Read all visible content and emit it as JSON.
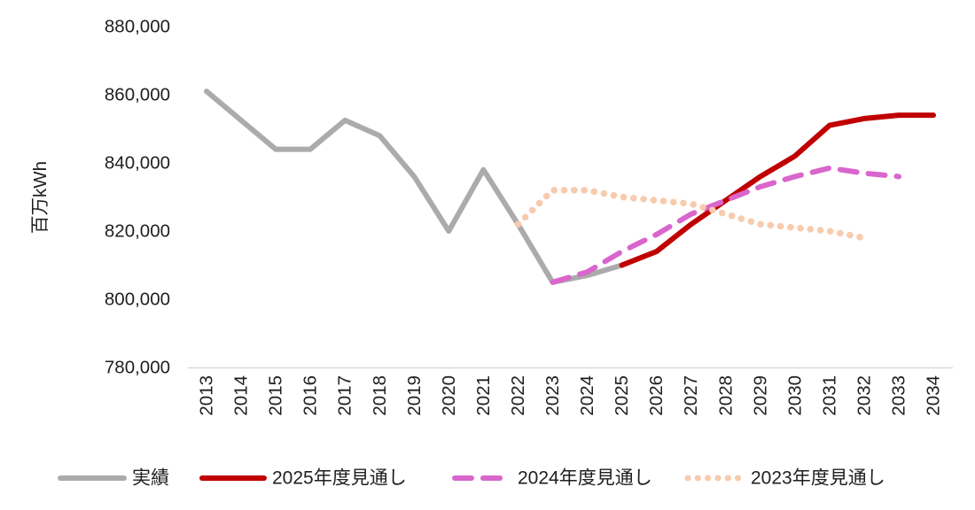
{
  "chart_data": {
    "type": "line",
    "title": "",
    "ylabel": "百万kWh",
    "ylim": [
      780000,
      880000
    ],
    "y_ticks": [
      {
        "value": 780000,
        "label": "780,000"
      },
      {
        "value": 800000,
        "label": "800,000"
      },
      {
        "value": 820000,
        "label": "820,000"
      },
      {
        "value": 840000,
        "label": "840,000"
      },
      {
        "value": 860000,
        "label": "860,000"
      },
      {
        "value": 880000,
        "label": "880,000"
      }
    ],
    "x_categories": [
      "2013",
      "2014",
      "2015",
      "2016",
      "2017",
      "2018",
      "2019",
      "2020",
      "2021",
      "2022",
      "2023",
      "2024",
      "2025",
      "2026",
      "2027",
      "2028",
      "2029",
      "2030",
      "2031",
      "2032",
      "2033",
      "2034"
    ],
    "x_label_rotation": -90,
    "grid": false,
    "axis_line_color": "#D9D9D9",
    "legend_position": "bottom",
    "series": [
      {
        "key": "actual",
        "name": "実績",
        "color": "#ABABAB",
        "style": "solid",
        "start": "2013",
        "values": [
          861000,
          852500,
          844000,
          844000,
          852500,
          848000,
          836000,
          820000,
          838000,
          822000,
          805000,
          807000,
          810000
        ]
      },
      {
        "key": "forecast-2025",
        "name": "2025年度見通し",
        "color": "#C00000",
        "style": "solid",
        "start": "2025",
        "values": [
          810000,
          814000,
          822000,
          829000,
          836000,
          842000,
          851000,
          853000,
          854000,
          854000
        ]
      },
      {
        "key": "forecast-2024",
        "name": "2024年度見通し",
        "color": "#D966CC",
        "style": "dashed",
        "start": "2023",
        "values": [
          805000,
          808000,
          814000,
          819000,
          825000,
          829000,
          833000,
          836000,
          838500,
          837000,
          836000
        ]
      },
      {
        "key": "forecast-2023",
        "name": "2023年度見通し",
        "color": "#F8CBAD",
        "style": "dotted",
        "start": "2022",
        "values": [
          822000,
          832000,
          832000,
          830000,
          829000,
          828000,
          825000,
          822000,
          821000,
          820000,
          818000
        ]
      }
    ]
  }
}
